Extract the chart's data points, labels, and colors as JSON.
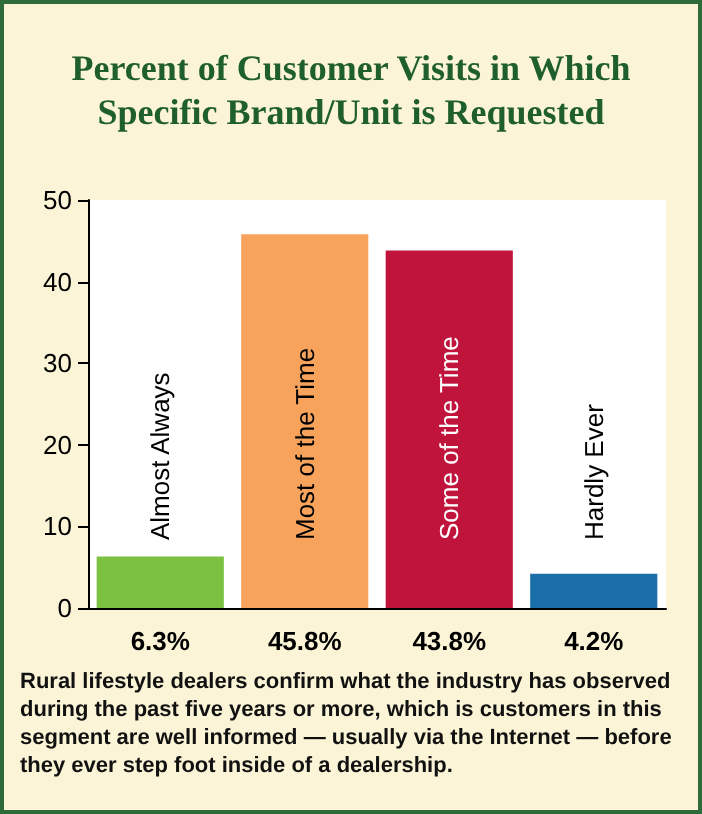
{
  "chart_data": {
    "type": "bar",
    "title": "Percent of Customer Visits in Which Specific Brand/Unit is Requested",
    "categories": [
      "Almost Always",
      "Most of the Time",
      "Some of the Time",
      "Hardly Ever"
    ],
    "values": [
      6.3,
      45.8,
      43.8,
      4.2
    ],
    "colors": [
      "#7cc142",
      "#f7a35c",
      "#c0143c",
      "#1b6fa8"
    ],
    "value_labels": [
      "6.3%",
      "45.8%",
      "43.8%",
      "4.2%"
    ],
    "ylim": [
      0,
      50
    ],
    "yticks": [
      0,
      10,
      20,
      30,
      40,
      50
    ],
    "grid": false,
    "annotations": [
      "Rural lifestyle dealers confirm what the industry has observed during the past five years or more, which is customers in this segment are well informed — usually via the Internet — before they ever step foot inside of a dealership."
    ]
  }
}
